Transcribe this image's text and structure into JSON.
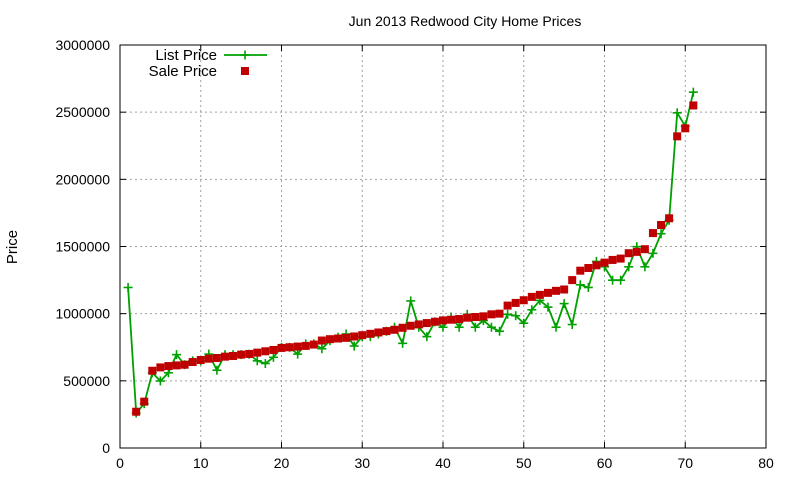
{
  "chart_data": {
    "type": "line",
    "title": "Jun 2013 Redwood City Home Prices",
    "xlabel": "",
    "ylabel": "Price",
    "xlim": [
      0,
      80
    ],
    "ylim": [
      0,
      3000000
    ],
    "x_ticks": [
      0,
      10,
      20,
      30,
      40,
      50,
      60,
      70,
      80
    ],
    "y_ticks": [
      0,
      500000,
      1000000,
      1500000,
      2000000,
      2500000,
      3000000
    ],
    "grid": true,
    "legend_position": "top-left",
    "series": [
      {
        "name": "List Price",
        "style": "line+plus",
        "color": "#00a000",
        "x": [
          1,
          2,
          3,
          4,
          5,
          6,
          7,
          8,
          9,
          10,
          11,
          12,
          13,
          14,
          15,
          16,
          17,
          18,
          19,
          20,
          21,
          22,
          23,
          24,
          25,
          26,
          27,
          28,
          29,
          30,
          31,
          32,
          33,
          34,
          35,
          36,
          37,
          38,
          39,
          40,
          41,
          42,
          43,
          44,
          45,
          46,
          47,
          48,
          49,
          50,
          51,
          52,
          53,
          54,
          55,
          56,
          57,
          58,
          59,
          60,
          61,
          62,
          63,
          64,
          65,
          66,
          67,
          68,
          69,
          70,
          71
        ],
        "values": [
          1195000,
          260000,
          330000,
          560000,
          499000,
          560000,
          695000,
          620000,
          649000,
          649000,
          699000,
          579000,
          695000,
          695000,
          695000,
          698000,
          649000,
          629000,
          675000,
          749000,
          749000,
          699000,
          775000,
          775000,
          739000,
          799000,
          825000,
          849000,
          759000,
          829000,
          829000,
          849000,
          869000,
          899000,
          779000,
          1095000,
          899000,
          829000,
          939000,
          899000,
          975000,
          899000,
          995000,
          899000,
          949000,
          899000,
          869000,
          995000,
          985000,
          929000,
          1029000,
          1099000,
          1049000,
          899000,
          1075000,
          919000,
          1215000,
          1195000,
          1389000,
          1349000,
          1249000,
          1249000,
          1349000,
          1499000,
          1349000,
          1449000,
          1595000,
          1695000,
          2495000,
          2395000,
          2649000
        ]
      },
      {
        "name": "Sale Price",
        "style": "square",
        "color": "#c00000",
        "x": [
          2,
          3,
          4,
          5,
          6,
          7,
          8,
          9,
          10,
          11,
          12,
          13,
          14,
          15,
          16,
          17,
          18,
          19,
          20,
          21,
          22,
          23,
          24,
          25,
          26,
          27,
          28,
          29,
          30,
          31,
          32,
          33,
          34,
          35,
          36,
          37,
          38,
          39,
          40,
          41,
          42,
          43,
          44,
          45,
          46,
          47,
          48,
          49,
          50,
          51,
          52,
          53,
          54,
          55,
          56,
          57,
          58,
          59,
          60,
          61,
          62,
          63,
          64,
          65,
          66,
          67,
          68,
          69,
          70,
          71
        ],
        "values": [
          270000,
          345000,
          575000,
          600000,
          610000,
          615000,
          620000,
          640000,
          655000,
          665000,
          670000,
          680000,
          685000,
          695000,
          700000,
          710000,
          720000,
          730000,
          745000,
          750000,
          755000,
          760000,
          770000,
          800000,
          810000,
          815000,
          820000,
          830000,
          840000,
          850000,
          860000,
          870000,
          880000,
          895000,
          910000,
          920000,
          930000,
          940000,
          950000,
          955000,
          960000,
          970000,
          975000,
          980000,
          995000,
          1000000,
          1060000,
          1080000,
          1100000,
          1125000,
          1140000,
          1155000,
          1170000,
          1180000,
          1250000,
          1320000,
          1340000,
          1360000,
          1380000,
          1400000,
          1410000,
          1450000,
          1460000,
          1480000,
          1600000,
          1660000,
          1710000,
          2320000,
          2380000,
          2550000
        ]
      }
    ]
  }
}
